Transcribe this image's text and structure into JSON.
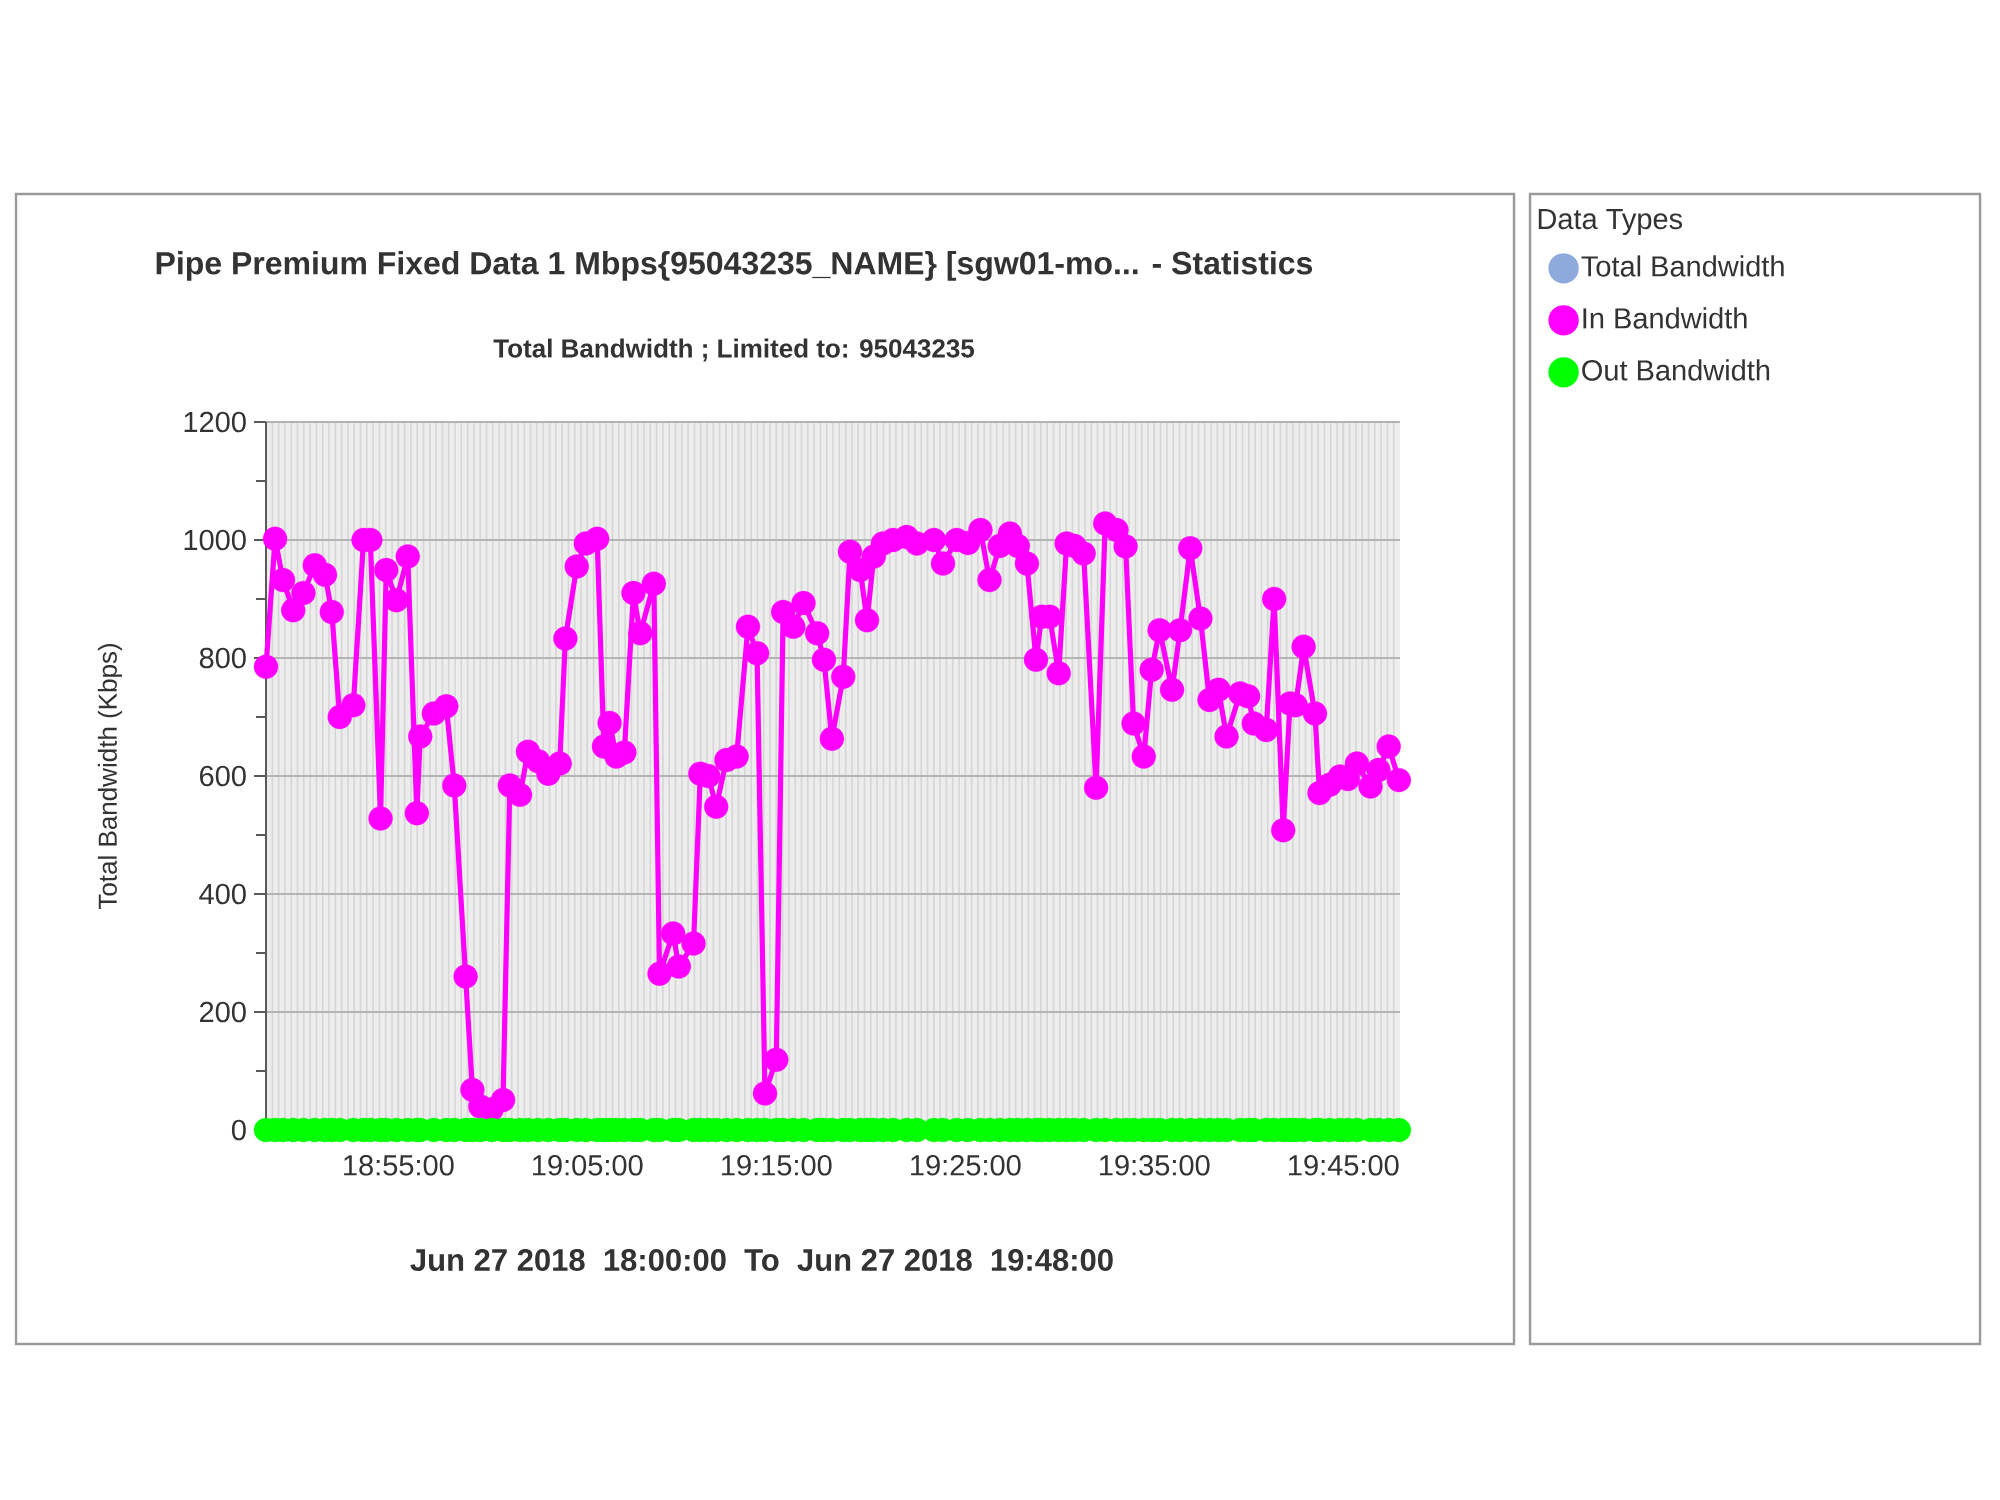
{
  "chart_data": {
    "type": "line",
    "title": "Pipe Premium Fixed Data 1 Mbps{95043235_NAME} [sgw01-mo... - Statistics",
    "subtitle": "Total Bandwidth ; Limited to: 95043235",
    "ylabel": "Total Bandwidth (Kbps)",
    "annotations": [
      "Jun 27 2018  18:00:00  To  Jun 27 2018  19:48:00"
    ],
    "legend_title": "Data Types",
    "legend": "right",
    "grid": true,
    "marker": "circle",
    "xlim": [
      18.8,
      19.8
    ],
    "xticks": [
      {
        "value": 18.9167,
        "label": "18:55:00"
      },
      {
        "value": 19.0833,
        "label": "19:05:00"
      },
      {
        "value": 19.25,
        "label": "19:15:00"
      },
      {
        "value": 19.4167,
        "label": "19:25:00"
      },
      {
        "value": 19.5833,
        "label": "19:35:00"
      },
      {
        "value": 19.75,
        "label": "19:45:00"
      }
    ],
    "ylim": [
      0,
      1200
    ],
    "yticks": [
      0,
      {
        "value": 100,
        "label": null
      },
      200,
      {
        "value": 300,
        "label": null
      },
      400,
      {
        "value": 500,
        "label": null
      },
      600,
      {
        "value": 700,
        "label": null
      },
      800,
      {
        "value": 900,
        "label": null
      },
      1000,
      {
        "value": 1100,
        "label": null
      },
      1200
    ],
    "x": [
      18.8,
      18.808,
      18.815,
      18.824,
      18.833,
      18.843,
      18.852,
      18.858,
      18.865,
      18.877,
      18.886,
      18.892,
      18.901,
      18.906,
      18.915,
      18.925,
      18.933,
      18.936,
      18.948,
      18.959,
      18.966,
      18.976,
      18.982,
      18.989,
      18.999,
      19.009,
      19.015,
      19.024,
      19.031,
      19.04,
      19.049,
      19.059,
      19.064,
      19.074,
      19.082,
      19.092,
      19.098,
      19.103,
      19.109,
      19.116,
      19.124,
      19.13,
      19.142,
      19.147,
      19.159,
      19.164,
      19.177,
      19.183,
      19.19,
      19.197,
      19.206,
      19.215,
      19.225,
      19.233,
      19.24,
      19.25,
      19.256,
      19.265,
      19.274,
      19.286,
      19.292,
      19.299,
      19.309,
      19.315,
      19.324,
      19.33,
      19.336,
      19.344,
      19.353,
      19.365,
      19.374,
      19.389,
      19.397,
      19.409,
      19.419,
      19.43,
      19.438,
      19.447,
      19.456,
      19.463,
      19.471,
      19.479,
      19.484,
      19.491,
      19.499,
      19.506,
      19.513,
      19.521,
      19.532,
      19.54,
      19.55,
      19.558,
      19.565,
      19.574,
      19.581,
      19.588,
      19.599,
      19.606,
      19.615,
      19.624,
      19.632,
      19.64,
      19.647,
      19.659,
      19.666,
      19.671,
      19.682,
      19.689,
      19.697,
      19.703,
      19.708,
      19.715,
      19.725,
      19.729,
      19.738,
      19.747,
      19.754,
      19.762,
      19.774,
      19.781,
      19.79,
      19.799
    ],
    "series": [
      {
        "name": "Total Bandwidth",
        "color": "#8eaadc",
        "values": [
          null,
          null,
          null,
          null,
          null,
          null,
          null,
          null,
          null,
          null,
          null,
          null,
          null,
          null,
          null,
          null,
          null,
          null,
          null,
          null,
          null,
          null,
          null,
          null,
          null,
          null,
          null,
          null,
          null,
          null,
          null,
          null,
          null,
          null,
          null,
          null,
          null,
          null,
          null,
          null,
          null,
          null,
          null,
          null,
          null,
          null,
          null,
          null,
          null,
          null,
          null,
          null,
          null,
          null,
          null,
          null,
          null,
          null,
          null,
          null,
          null,
          null,
          null,
          null,
          null,
          null,
          null,
          null,
          null,
          null,
          null,
          null,
          null,
          null,
          null,
          null,
          null,
          null,
          null,
          null,
          null,
          null,
          null,
          null,
          null,
          null,
          null,
          null,
          null,
          null,
          null,
          null,
          null,
          null,
          null,
          null,
          null,
          null,
          null,
          null,
          null,
          null,
          null,
          null,
          null,
          null,
          null,
          null,
          null,
          null,
          null,
          null,
          null,
          null,
          null,
          null,
          null,
          null,
          null,
          null,
          null,
          null
        ]
      },
      {
        "name": "In Bandwidth",
        "color": "#ff00ff",
        "values": [
          785,
          1002,
          932,
          881,
          910,
          957,
          941,
          878,
          700,
          720,
          1000,
          1000,
          528,
          949,
          898,
          972,
          537,
          667,
          706,
          718,
          584,
          260,
          68,
          40,
          35,
          51,
          584,
          568,
          641,
          625,
          604,
          621,
          833,
          955,
          994,
          1002,
          650,
          690,
          633,
          640,
          910,
          842,
          926,
          265,
          333,
          277,
          316,
          604,
          600,
          548,
          627,
          633,
          853,
          808,
          62,
          119,
          878,
          853,
          893,
          842,
          797,
          663,
          768,
          980,
          949,
          864,
          972,
          994,
          1000,
          1005,
          994,
          1000,
          960,
          1000,
          995,
          1017,
          932,
          990,
          1011,
          990,
          960,
          797,
          870,
          870,
          774,
          994,
          990,
          977,
          580,
          1028,
          1017,
          989,
          689,
          633,
          780,
          847,
          746,
          847,
          986,
          867,
          729,
          746,
          667,
          740,
          735,
          689,
          678,
          900,
          508,
          723,
          720,
          819,
          706,
          571,
          585,
          599,
          595,
          621,
          582,
          610,
          650,
          593
        ]
      },
      {
        "name": "Out Bandwidth",
        "color": "#00ff00",
        "values": [
          0,
          0,
          0,
          0,
          0,
          0,
          0,
          0,
          0,
          0,
          0,
          0,
          0,
          0,
          0,
          0,
          0,
          0,
          0,
          0,
          0,
          0,
          0,
          0,
          0,
          0,
          0,
          0,
          0,
          0,
          0,
          0,
          0,
          0,
          0,
          0,
          0,
          0,
          0,
          0,
          0,
          0,
          0,
          0,
          0,
          0,
          0,
          0,
          0,
          0,
          0,
          0,
          0,
          0,
          0,
          0,
          0,
          0,
          0,
          0,
          0,
          0,
          0,
          0,
          0,
          0,
          0,
          0,
          0,
          0,
          0,
          0,
          0,
          0,
          0,
          0,
          0,
          0,
          0,
          0,
          0,
          0,
          0,
          0,
          0,
          0,
          0,
          0,
          0,
          0,
          0,
          0,
          0,
          0,
          0,
          0,
          0,
          0,
          0,
          0,
          0,
          0,
          0,
          0,
          0,
          0,
          0,
          0,
          0,
          0,
          0,
          0,
          0,
          0,
          0,
          0,
          0,
          0,
          0,
          0,
          0,
          0
        ]
      }
    ]
  }
}
